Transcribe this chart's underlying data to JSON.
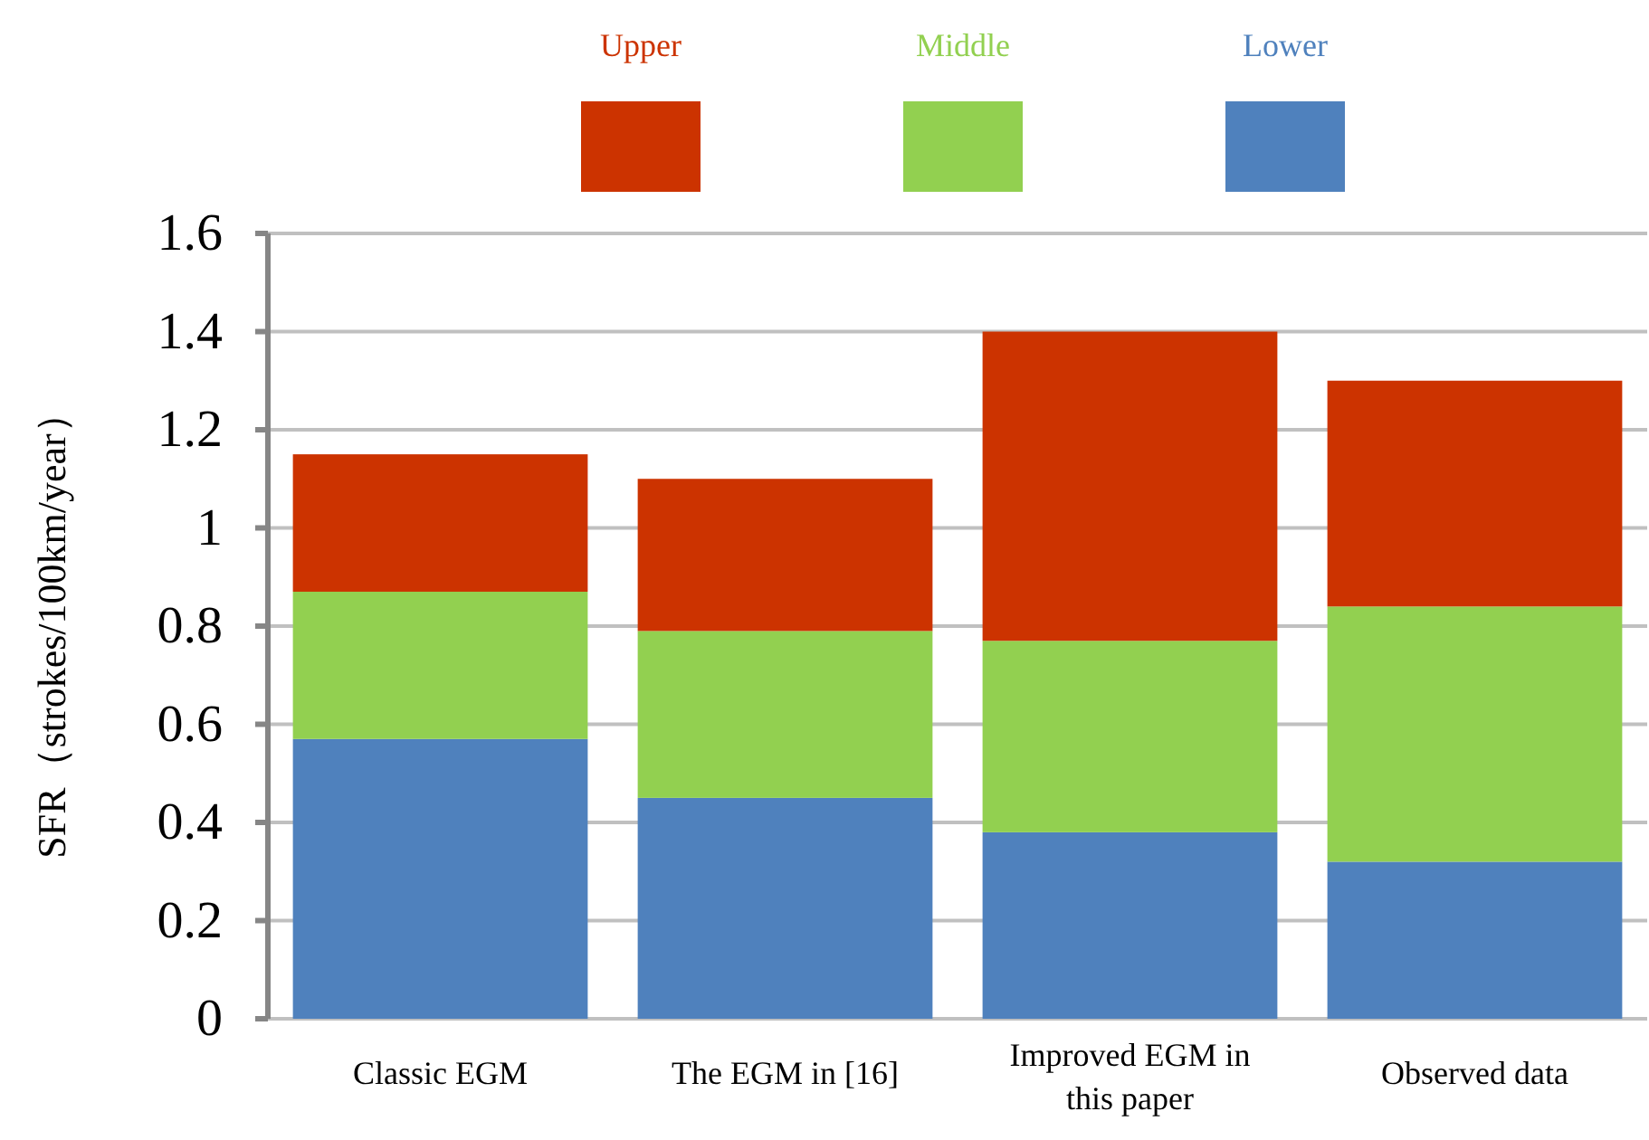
{
  "chart_data": {
    "type": "bar",
    "stacked": true,
    "ylabel": "SFR（strokes/100km/year）",
    "categories": [
      "Classic EGM",
      "The EGM in [16]",
      "Improved EGM in this paper",
      "Observed data"
    ],
    "series": [
      {
        "name": "Lower",
        "color": "#4f81bd",
        "values": [
          0.57,
          0.45,
          0.38,
          0.32
        ]
      },
      {
        "name": "Middle",
        "color": "#92d050",
        "values": [
          0.3,
          0.34,
          0.39,
          0.52
        ]
      },
      {
        "name": "Upper",
        "color": "#cc3300",
        "values": [
          0.28,
          0.31,
          0.63,
          0.46
        ]
      }
    ],
    "ylim": [
      0,
      1.6
    ],
    "yticks": [
      0,
      0.2,
      0.4,
      0.6,
      0.8,
      1,
      1.2,
      1.4,
      1.6
    ],
    "grid": "y",
    "legend": "top"
  }
}
